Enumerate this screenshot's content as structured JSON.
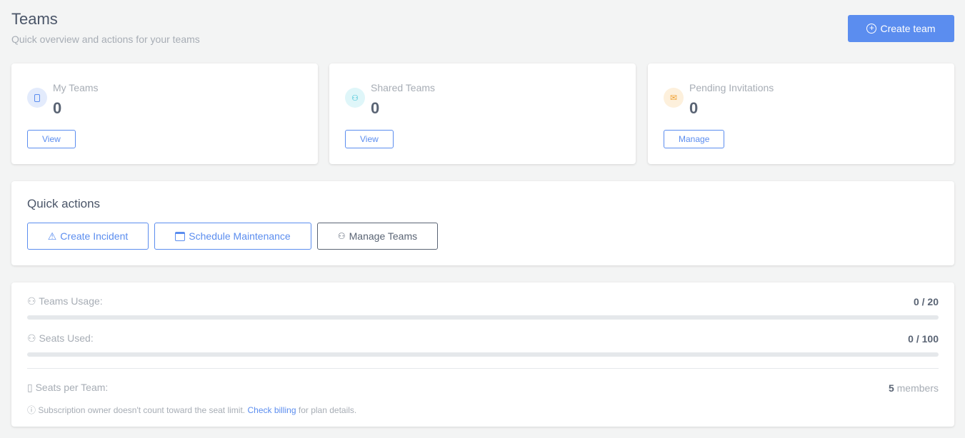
{
  "header": {
    "title": "Teams",
    "subtitle": "Quick overview and actions for your teams",
    "create_label": "Create team"
  },
  "stats": [
    {
      "label": "My Teams",
      "value": "0",
      "button": "View",
      "icon": "badge-icon",
      "color": "#5b8def",
      "bg": "#e3ebfc"
    },
    {
      "label": "Shared Teams",
      "value": "0",
      "button": "View",
      "icon": "users-icon",
      "color": "#22b8cf",
      "bg": "#dff6f9"
    },
    {
      "label": "Pending Invitations",
      "value": "0",
      "button": "Manage",
      "icon": "envelope-icon",
      "color": "#f0a030",
      "bg": "#fdf0dc"
    }
  ],
  "quick_actions": {
    "title": "Quick actions",
    "create_incident": "Create Incident",
    "schedule_maintenance": "Schedule Maintenance",
    "manage_teams": "Manage Teams"
  },
  "usage": {
    "teams_label": "Teams Usage:",
    "teams_value": "0 / 20",
    "teams_percent": 0,
    "seats_label": "Seats Used:",
    "seats_value": "0 / 100",
    "seats_percent": 0,
    "per_team_label": "Seats per Team:",
    "per_team_number": "5",
    "per_team_unit": "members",
    "note_prefix": "Subscription owner doesn't count toward the seat limit.",
    "note_link": "Check billing",
    "note_suffix": "for plan details."
  }
}
